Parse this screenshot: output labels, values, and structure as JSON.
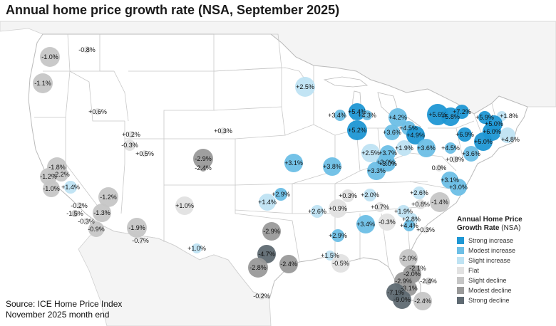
{
  "title": "Annual home price growth rate (NSA, September 2025)",
  "source_lines": [
    "Source: ICE Home Price Index",
    "November 2025 month end"
  ],
  "legend": {
    "title": "Annual Home Price",
    "title2": "Growth Rate",
    "title_suffix": "(NSA)",
    "items": [
      {
        "label": "Strong increase",
        "color": "#1f97d4"
      },
      {
        "label": "Modest increase",
        "color": "#6dbfe6"
      },
      {
        "label": "Slight increase",
        "color": "#bfe3f3"
      },
      {
        "label": "Flat",
        "color": "#e2e2e2"
      },
      {
        "label": "Slight decline",
        "color": "#c6c6c6"
      },
      {
        "label": "Modest decline",
        "color": "#9a9a9a"
      },
      {
        "label": "Strong decline",
        "color": "#5f6a72"
      }
    ]
  },
  "markers": [
    {
      "label": "-1.0%",
      "value": -1.0,
      "category": "Slight decline"
    },
    {
      "label": "-0.8%",
      "value": -0.8,
      "category": "Flat"
    },
    {
      "label": "-1.1%",
      "value": -1.1,
      "category": "Slight decline"
    },
    {
      "label": "+0.6%",
      "value": 0.6,
      "category": "Flat"
    },
    {
      "label": "+2.5%",
      "value": 2.5,
      "category": "Slight increase"
    },
    {
      "label": "+5.4%",
      "value": 5.4,
      "category": "Strong increase"
    },
    {
      "label": "+3.4%",
      "value": 3.4,
      "category": "Modest increase"
    },
    {
      "label": "+4.3%",
      "value": 4.3,
      "category": "Modest increase"
    },
    {
      "label": "+5.2%",
      "value": 5.2,
      "category": "Strong increase"
    },
    {
      "label": "+4.2%",
      "value": 4.2,
      "category": "Modest increase"
    },
    {
      "label": "+3.6%",
      "value": 3.6,
      "category": "Modest increase"
    },
    {
      "label": "+4.5%",
      "value": 4.5,
      "category": "Modest increase"
    },
    {
      "label": "+4.9%",
      "value": 4.9,
      "category": "Strong increase"
    },
    {
      "label": "+5.6%",
      "value": 5.6,
      "category": "Strong increase"
    },
    {
      "label": "+7.2%",
      "value": 7.2,
      "category": "Strong increase"
    },
    {
      "label": "+5.8%",
      "value": 5.8,
      "category": "Strong increase"
    },
    {
      "label": "+5.9%",
      "value": 5.9,
      "category": "Strong increase"
    },
    {
      "label": "+1.8%",
      "value": 1.8,
      "category": "Slight increase"
    },
    {
      "label": "+5.0%",
      "value": 5.0,
      "category": "Strong increase"
    },
    {
      "label": "+6.0%",
      "value": 6.0,
      "category": "Strong increase"
    },
    {
      "label": "+6.9%",
      "value": 6.9,
      "category": "Strong increase"
    },
    {
      "label": "+5.0%",
      "value": 5.0,
      "category": "Strong increase"
    },
    {
      "label": "+4.8%",
      "value": 4.8,
      "category": "Slight increase"
    },
    {
      "label": "+3.6%",
      "value": 3.6,
      "category": "Modest increase"
    },
    {
      "label": "+3.6%",
      "value": 3.6,
      "category": "Modest increase"
    },
    {
      "label": "+4.5%",
      "value": 4.5,
      "category": "Modest increase"
    },
    {
      "label": "+0.8%",
      "value": 0.8,
      "category": "Flat"
    },
    {
      "label": "0.0%",
      "value": 0.0,
      "category": "Flat"
    },
    {
      "label": "+3.1%",
      "value": 3.1,
      "category": "Modest increase"
    },
    {
      "label": "+3.0%",
      "value": 3.0,
      "category": "Modest increase"
    },
    {
      "label": "+3.0%",
      "value": 3.0,
      "category": "Modest increase"
    },
    {
      "label": "+0.3%",
      "value": 0.3,
      "category": "Flat"
    },
    {
      "label": "+0.2%",
      "value": 0.2,
      "category": "Flat"
    },
    {
      "label": "-0.3%",
      "value": -0.3,
      "category": "Flat"
    },
    {
      "label": "+0.5%",
      "value": 0.5,
      "category": "Flat"
    },
    {
      "label": "-2.9%",
      "value": -2.9,
      "category": "Modest decline"
    },
    {
      "label": "-2.4%",
      "value": -2.4,
      "category": "Modest decline"
    },
    {
      "label": "+3.1%",
      "value": 3.1,
      "category": "Modest increase"
    },
    {
      "label": "+3.8%",
      "value": 3.8,
      "category": "Modest increase"
    },
    {
      "label": "+2.5%",
      "value": 2.5,
      "category": "Slight increase"
    },
    {
      "label": "+3.7%",
      "value": 3.7,
      "category": "Modest increase"
    },
    {
      "label": "+3.0%",
      "value": 3.0,
      "category": "Modest increase"
    },
    {
      "label": "+3.3%",
      "value": 3.3,
      "category": "Modest increase"
    },
    {
      "label": "+1.9%",
      "value": 1.9,
      "category": "Slight increase"
    },
    {
      "label": "-1.8%",
      "value": -1.8,
      "category": "Slight decline"
    },
    {
      "label": "-1.2%",
      "value": -1.2,
      "category": "Slight decline"
    },
    {
      "label": "-2.2%",
      "value": -2.2,
      "category": "Slight decline"
    },
    {
      "label": "-1.0%",
      "value": -1.0,
      "category": "Slight decline"
    },
    {
      "label": "+1.4%",
      "value": 1.4,
      "category": "Slight increase"
    },
    {
      "label": "-0.2%",
      "value": -0.2,
      "category": "Flat"
    },
    {
      "label": "-1.5%",
      "value": -1.5,
      "category": "Slight decline"
    },
    {
      "label": "-1.3%",
      "value": -1.3,
      "category": "Slight decline"
    },
    {
      "label": "-1.2%",
      "value": -1.2,
      "category": "Slight decline"
    },
    {
      "label": "-0.3%",
      "value": -0.3,
      "category": "Flat"
    },
    {
      "label": "-0.9%",
      "value": -0.9,
      "category": "Slight decline"
    },
    {
      "label": "-1.9%",
      "value": -1.9,
      "category": "Slight decline"
    },
    {
      "label": "-0.7%",
      "value": -0.7,
      "category": "Flat"
    },
    {
      "label": "+1.0%",
      "value": 1.0,
      "category": "Flat"
    },
    {
      "label": "+2.9%",
      "value": 2.9,
      "category": "Modest increase"
    },
    {
      "label": "+1.4%",
      "value": 1.4,
      "category": "Slight increase"
    },
    {
      "label": "+2.6%",
      "value": 2.6,
      "category": "Slight increase"
    },
    {
      "label": "+0.9%",
      "value": 0.9,
      "category": "Flat"
    },
    {
      "label": "+0.3%",
      "value": 0.3,
      "category": "Flat"
    },
    {
      "label": "+2.0%",
      "value": 2.0,
      "category": "Slight increase"
    },
    {
      "label": "+2.6%",
      "value": 2.6,
      "category": "Slight increase"
    },
    {
      "label": "+0.7%",
      "value": 0.7,
      "category": "Flat"
    },
    {
      "label": "+0.8%",
      "value": 0.8,
      "category": "Flat"
    },
    {
      "label": "-1.4%",
      "value": -1.4,
      "category": "Slight decline"
    },
    {
      "label": "+1.9%",
      "value": 1.9,
      "category": "Slight increase"
    },
    {
      "label": "+2.8%",
      "value": 2.8,
      "category": "Slight increase"
    },
    {
      "label": "+4.4%",
      "value": 4.4,
      "category": "Modest increase"
    },
    {
      "label": "+0.3%",
      "value": 0.3,
      "category": "Flat"
    },
    {
      "label": "+3.4%",
      "value": 3.4,
      "category": "Modest increase"
    },
    {
      "label": "-0.3%",
      "value": -0.3,
      "category": "Flat"
    },
    {
      "label": "+2.9%",
      "value": 2.9,
      "category": "Modest increase"
    },
    {
      "label": "-2.9%",
      "value": -2.9,
      "category": "Modest decline"
    },
    {
      "label": "+1.0%",
      "value": 1.0,
      "category": "Slight increase"
    },
    {
      "label": "-4.7%",
      "value": -4.7,
      "category": "Strong decline"
    },
    {
      "label": "-2.8%",
      "value": -2.8,
      "category": "Modest decline"
    },
    {
      "label": "-2.4%",
      "value": -2.4,
      "category": "Modest decline"
    },
    {
      "label": "+1.5%",
      "value": 1.5,
      "category": "Slight increase"
    },
    {
      "label": "-0.5%",
      "value": -0.5,
      "category": "Flat"
    },
    {
      "label": "-0.2%",
      "value": -0.2,
      "category": "Flat"
    },
    {
      "label": "-2.0%",
      "value": -2.0,
      "category": "Slight decline"
    },
    {
      "label": "-2.1%",
      "value": -2.1,
      "category": "Slight decline"
    },
    {
      "label": "-2.0%",
      "value": -2.0,
      "category": "Modest decline"
    },
    {
      "label": "-2.9%",
      "value": -2.9,
      "category": "Modest decline"
    },
    {
      "label": "-2.4%",
      "value": -2.4,
      "category": "Slight decline"
    },
    {
      "label": "-3.1%",
      "value": -3.1,
      "category": "Modest decline"
    },
    {
      "label": "-7.1%",
      "value": -7.1,
      "category": "Strong decline"
    },
    {
      "label": "-9.0%",
      "value": -9.0,
      "category": "Strong decline"
    },
    {
      "label": "-2.4%",
      "value": -2.4,
      "category": "Slight decline"
    }
  ]
}
